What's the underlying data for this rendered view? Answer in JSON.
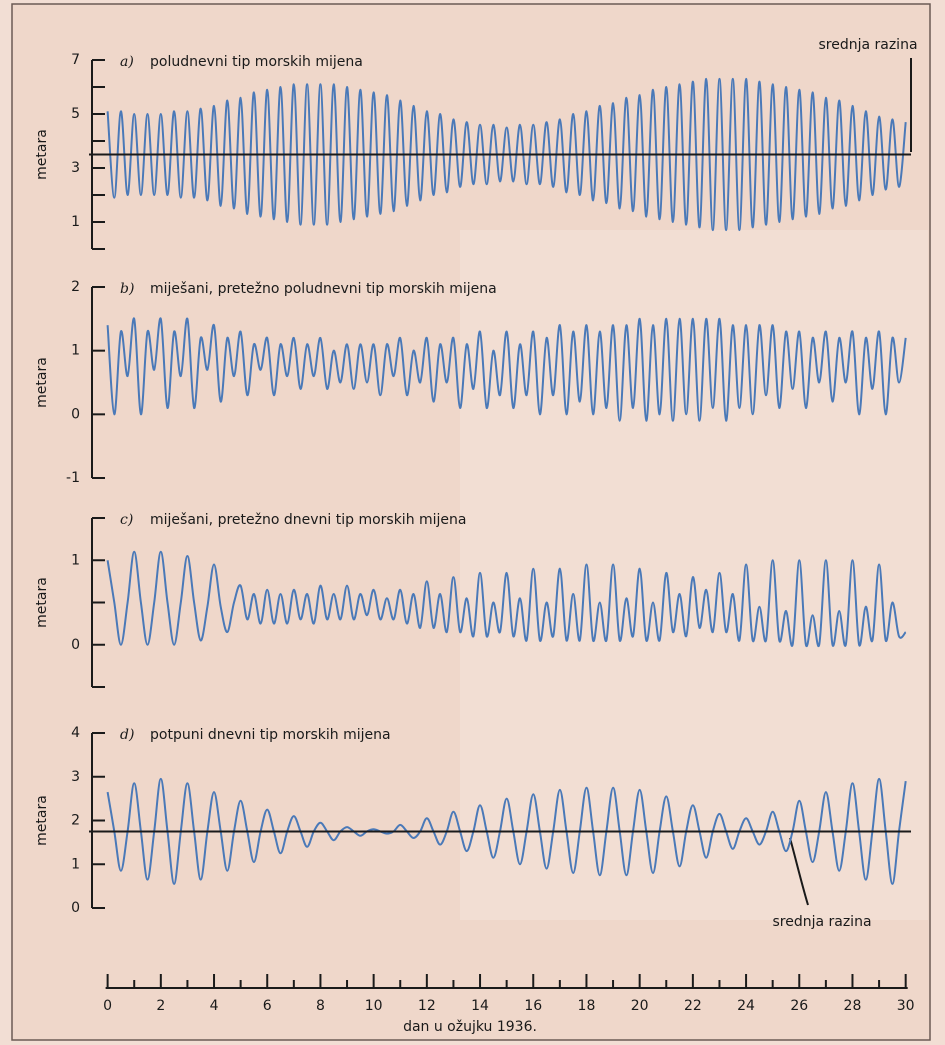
{
  "chart_data": {
    "type": "line",
    "xlabel": "dan u ožujku 1936.",
    "xlim": [
      -0.7,
      30.2
    ],
    "xticks": [
      0,
      2,
      4,
      6,
      8,
      10,
      12,
      14,
      16,
      18,
      20,
      22,
      24,
      26,
      28,
      30
    ],
    "xminorticks": [
      1,
      3,
      5,
      7,
      9,
      11,
      13,
      15,
      17,
      19,
      21,
      23,
      25,
      27,
      29
    ],
    "x": [
      0,
      0.25,
      0.5,
      0.75,
      1,
      1.25,
      1.5,
      1.75,
      2,
      2.25,
      2.5,
      2.75,
      3,
      3.25,
      3.5,
      3.75,
      4,
      4.25,
      4.5,
      4.75,
      5,
      5.25,
      5.5,
      5.75,
      6,
      6.25,
      6.5,
      6.75,
      7,
      7.25,
      7.5,
      7.75,
      8,
      8.25,
      8.5,
      8.75,
      9,
      9.25,
      9.5,
      9.75,
      10,
      10.25,
      10.5,
      10.75,
      11,
      11.25,
      11.5,
      11.75,
      12,
      12.25,
      12.5,
      12.75,
      13,
      13.25,
      13.5,
      13.75,
      14,
      14.25,
      14.5,
      14.75,
      15,
      15.25,
      15.5,
      15.75,
      16,
      16.25,
      16.5,
      16.75,
      17,
      17.25,
      17.5,
      17.75,
      18,
      18.25,
      18.5,
      18.75,
      19,
      19.25,
      19.5,
      19.75,
      20,
      20.25,
      20.5,
      20.75,
      21,
      21.25,
      21.5,
      21.75,
      22,
      22.25,
      22.5,
      22.75,
      23,
      23.25,
      23.5,
      23.75,
      24,
      24.25,
      24.5,
      24.75,
      25,
      25.25,
      25.5,
      25.75,
      26,
      26.25,
      26.5,
      26.75,
      27,
      27.25,
      27.5,
      27.75,
      28,
      28.25,
      28.5,
      28.75,
      29,
      29.25,
      29.5,
      29.75,
      30
    ],
    "panels": [
      {
        "letter": "a)",
        "title": "poludnevni tip morskih mijena",
        "ylabel": "metara",
        "color": "#4a79b8",
        "ylim": [
          0,
          7
        ],
        "yticks": [
          1,
          3,
          5,
          7
        ],
        "yminorticks": [
          0,
          2,
          4,
          6
        ],
        "mean": {
          "value": 3.5,
          "label": "srednja razina"
        },
        "values": [
          5.1,
          1.9,
          5.1,
          2.0,
          5.0,
          2.0,
          5.0,
          2.0,
          5.0,
          2.0,
          5.1,
          1.9,
          5.1,
          1.9,
          5.2,
          1.8,
          5.3,
          1.6,
          5.5,
          1.5,
          5.6,
          1.3,
          5.8,
          1.2,
          5.9,
          1.1,
          6.0,
          1.0,
          6.1,
          0.9,
          6.1,
          0.9,
          6.1,
          0.9,
          6.1,
          1.0,
          6.0,
          1.1,
          5.9,
          1.2,
          5.8,
          1.3,
          5.7,
          1.4,
          5.5,
          1.6,
          5.3,
          1.8,
          5.1,
          2.0,
          5.0,
          2.1,
          4.8,
          2.3,
          4.7,
          2.4,
          4.6,
          2.4,
          4.6,
          2.5,
          4.5,
          2.5,
          4.6,
          2.4,
          4.6,
          2.4,
          4.7,
          2.3,
          4.8,
          2.1,
          5.0,
          2.0,
          5.1,
          1.8,
          5.3,
          1.7,
          5.4,
          1.5,
          5.6,
          1.4,
          5.7,
          1.2,
          5.9,
          1.1,
          6.0,
          1.0,
          6.1,
          0.9,
          6.2,
          0.8,
          6.3,
          0.7,
          6.3,
          0.7,
          6.3,
          0.7,
          6.3,
          0.8,
          6.2,
          0.9,
          6.1,
          1.0,
          6.0,
          1.1,
          5.9,
          1.2,
          5.8,
          1.3,
          5.6,
          1.5,
          5.5,
          1.6,
          5.3,
          1.8,
          5.1,
          2.0,
          4.9,
          2.2,
          4.8,
          2.3,
          4.7
        ]
      },
      {
        "letter": "b)",
        "title": "miješani, pretežno poludnevni tip morskih mijena",
        "ylabel": "metara",
        "color": "#4a79b8",
        "ylim": [
          -1,
          2
        ],
        "yticks": [
          -1,
          0,
          1,
          2
        ],
        "values": [
          1.4,
          0.0,
          1.3,
          0.6,
          1.5,
          0.0,
          1.3,
          0.7,
          1.5,
          0.1,
          1.3,
          0.6,
          1.5,
          0.1,
          1.2,
          0.7,
          1.4,
          0.2,
          1.2,
          0.6,
          1.3,
          0.3,
          1.1,
          0.7,
          1.2,
          0.3,
          1.1,
          0.6,
          1.2,
          0.4,
          1.1,
          0.6,
          1.2,
          0.4,
          1.0,
          0.5,
          1.1,
          0.4,
          1.1,
          0.5,
          1.1,
          0.3,
          1.1,
          0.6,
          1.2,
          0.3,
          1.0,
          0.5,
          1.2,
          0.2,
          1.1,
          0.5,
          1.2,
          0.1,
          1.1,
          0.4,
          1.3,
          0.1,
          1.0,
          0.3,
          1.3,
          0.1,
          1.1,
          0.3,
          1.3,
          0.0,
          1.2,
          0.3,
          1.4,
          0.0,
          1.3,
          0.2,
          1.4,
          0.0,
          1.3,
          0.1,
          1.4,
          -0.1,
          1.4,
          0.1,
          1.5,
          -0.1,
          1.4,
          0.0,
          1.5,
          -0.1,
          1.5,
          0.0,
          1.5,
          -0.1,
          1.5,
          0.1,
          1.5,
          -0.1,
          1.4,
          0.1,
          1.4,
          0.0,
          1.4,
          0.3,
          1.4,
          0.1,
          1.3,
          0.4,
          1.3,
          0.1,
          1.2,
          0.5,
          1.3,
          0.2,
          1.2,
          0.5,
          1.3,
          0.0,
          1.2,
          0.4,
          1.3,
          0.0,
          1.2,
          0.5,
          1.2
        ]
      },
      {
        "letter": "c)",
        "title": "miješani, pretežno dnevni tip morskih mijena",
        "ylabel": "metara",
        "color": "#4a79b8",
        "ylim": [
          -0.5,
          1.5
        ],
        "yticks": [
          0,
          1
        ],
        "yminorticks": [
          -0.5,
          0.5,
          1.5
        ],
        "values": [
          1.0,
          0.5,
          0.0,
          0.5,
          1.1,
          0.5,
          0.0,
          0.5,
          1.1,
          0.5,
          0.0,
          0.5,
          1.05,
          0.5,
          0.05,
          0.45,
          0.95,
          0.45,
          0.15,
          0.5,
          0.7,
          0.3,
          0.6,
          0.25,
          0.65,
          0.25,
          0.6,
          0.25,
          0.65,
          0.3,
          0.6,
          0.25,
          0.7,
          0.3,
          0.6,
          0.3,
          0.7,
          0.3,
          0.6,
          0.35,
          0.65,
          0.3,
          0.55,
          0.3,
          0.65,
          0.25,
          0.6,
          0.2,
          0.75,
          0.2,
          0.6,
          0.15,
          0.8,
          0.15,
          0.55,
          0.1,
          0.85,
          0.1,
          0.5,
          0.15,
          0.85,
          0.1,
          0.55,
          0.05,
          0.9,
          0.05,
          0.5,
          0.1,
          0.9,
          0.05,
          0.6,
          0.05,
          0.95,
          0.05,
          0.5,
          0.05,
          0.95,
          0.05,
          0.55,
          0.1,
          0.9,
          0.05,
          0.5,
          0.05,
          0.85,
          0.15,
          0.6,
          0.1,
          0.8,
          0.2,
          0.65,
          0.15,
          0.85,
          0.15,
          0.6,
          0.05,
          0.95,
          0.05,
          0.45,
          0.05,
          1.0,
          0.05,
          0.4,
          0.0,
          1.0,
          0.0,
          0.35,
          0.0,
          1.0,
          0.0,
          0.4,
          0.0,
          1.0,
          0.0,
          0.45,
          0.05,
          0.95,
          0.05,
          0.5,
          0.1,
          0.15
        ]
      },
      {
        "letter": "d)",
        "title": "potpuni dnevni tip morskih mijena",
        "ylabel": "metara",
        "color": "#4a79b8",
        "ylim": [
          0,
          4
        ],
        "yticks": [
          0,
          1,
          2,
          3,
          4
        ],
        "mean": {
          "value": 1.75,
          "label": "srednja razina"
        },
        "values": [
          2.65,
          1.75,
          0.85,
          1.75,
          2.85,
          1.75,
          0.65,
          1.75,
          2.95,
          1.75,
          0.55,
          1.75,
          2.85,
          1.75,
          0.65,
          1.75,
          2.65,
          1.75,
          0.85,
          1.75,
          2.45,
          1.75,
          1.05,
          1.75,
          2.25,
          1.75,
          1.25,
          1.75,
          2.1,
          1.75,
          1.4,
          1.75,
          1.95,
          1.75,
          1.55,
          1.75,
          1.85,
          1.75,
          1.65,
          1.75,
          1.8,
          1.75,
          1.7,
          1.75,
          1.9,
          1.75,
          1.6,
          1.75,
          2.05,
          1.75,
          1.45,
          1.75,
          2.2,
          1.75,
          1.3,
          1.75,
          2.35,
          1.75,
          1.15,
          1.75,
          2.5,
          1.75,
          1.0,
          1.75,
          2.6,
          1.75,
          0.9,
          1.75,
          2.7,
          1.75,
          0.8,
          1.75,
          2.75,
          1.75,
          0.75,
          1.75,
          2.75,
          1.75,
          0.75,
          1.75,
          2.7,
          1.75,
          0.8,
          1.75,
          2.55,
          1.75,
          0.95,
          1.75,
          2.35,
          1.75,
          1.15,
          1.75,
          2.15,
          1.75,
          1.35,
          1.75,
          2.05,
          1.75,
          1.45,
          1.75,
          2.2,
          1.75,
          1.3,
          1.75,
          2.45,
          1.75,
          1.05,
          1.75,
          2.65,
          1.75,
          0.85,
          1.75,
          2.85,
          1.75,
          0.65,
          1.75,
          2.95,
          1.75,
          0.55,
          1.75,
          2.9
        ]
      }
    ]
  }
}
